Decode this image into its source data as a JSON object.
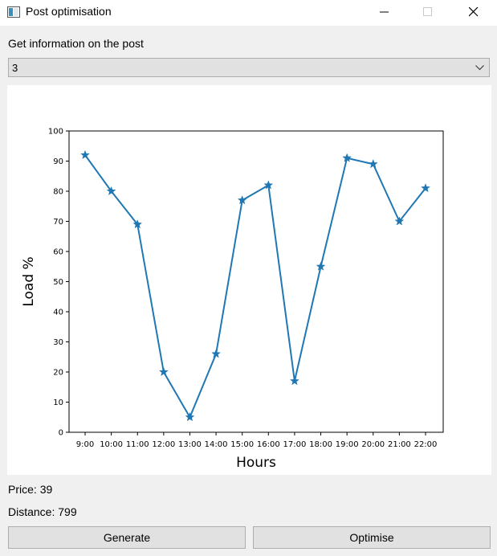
{
  "window": {
    "title": "Post optimisation"
  },
  "selector": {
    "label": "Get information on the post",
    "value": "3"
  },
  "chart_data": {
    "type": "line",
    "categories": [
      "9:00",
      "10:00",
      "11:00",
      "12:00",
      "13:00",
      "14:00",
      "15:00",
      "16:00",
      "17:00",
      "18:00",
      "19:00",
      "20:00",
      "21:00",
      "22:00"
    ],
    "series": [
      {
        "values": [
          92,
          80,
          69,
          20,
          5,
          26,
          77,
          82,
          17,
          55,
          91,
          89,
          70,
          81
        ],
        "color": "#1f77b4",
        "marker": "star"
      }
    ],
    "xlabel": "Hours",
    "ylabel": "Load %",
    "ylim": [
      0,
      100
    ],
    "yticks": [
      0,
      10,
      20,
      30,
      40,
      50,
      60,
      70,
      80,
      90,
      100
    ],
    "grid": false
  },
  "info": {
    "price_label": "Price:",
    "price_value": "39",
    "distance_label": "Distance:",
    "distance_value": "799"
  },
  "buttons": {
    "generate": "Generate",
    "optimise": "Optimise"
  }
}
